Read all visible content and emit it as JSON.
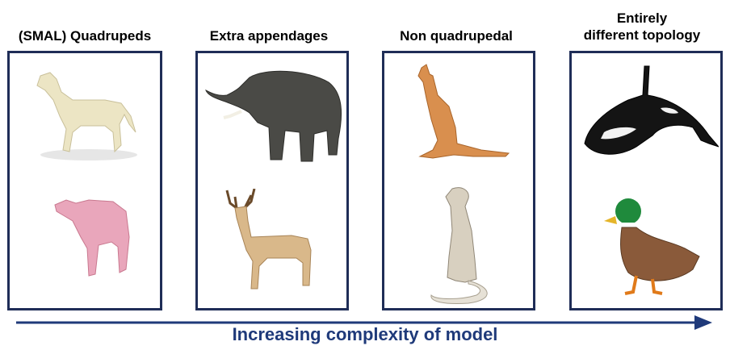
{
  "columns": [
    {
      "title": "(SMAL) Quadrupeds",
      "animals": [
        "horse-model",
        "cow-model"
      ]
    },
    {
      "title": "Extra appendages",
      "animals": [
        "elephant",
        "deer"
      ]
    },
    {
      "title": "Non quadrupedal",
      "animals": [
        "kangaroo",
        "meerkat"
      ]
    },
    {
      "title_line1": "Entirely",
      "title_line2": "different topology",
      "animals": [
        "orca",
        "mallard-duck"
      ]
    }
  ],
  "axis": {
    "label": "Increasing complexity of model",
    "color": "#1f3a7a"
  },
  "colors": {
    "panel_border": "#1f2d57",
    "horse": "#ece5c4",
    "cow": "#e9a6bb"
  }
}
